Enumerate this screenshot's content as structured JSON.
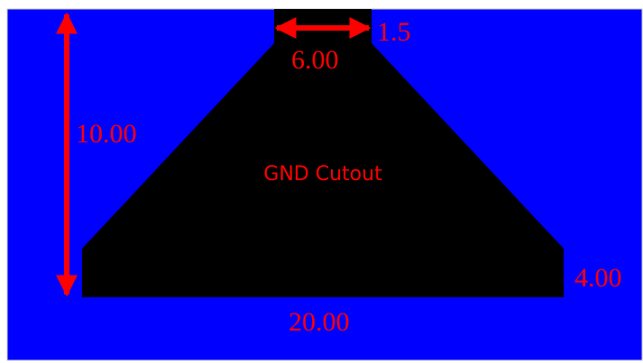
{
  "diagram": {
    "region_label": "GND Cutout",
    "dimensions": {
      "top_width": "6.00",
      "top_offset": "1.5",
      "height": "10.00",
      "bottom_width": "20.00",
      "base_height": "4.00"
    },
    "colors": {
      "substrate": "#0000ff",
      "cutout": "#000000",
      "annotation": "#ff0000",
      "border": "#c8c8c8"
    }
  }
}
